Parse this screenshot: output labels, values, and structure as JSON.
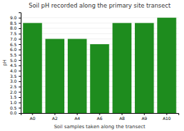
{
  "chart_data": {
    "type": "bar",
    "title": "Soil pH recorded along the primary site transect",
    "xlabel": "Soil samples taken along the transect",
    "ylabel": "pH",
    "categories": [
      "A0",
      "A2",
      "A4",
      "A6",
      "A8",
      "A9",
      "A10"
    ],
    "values": [
      8.5,
      7.0,
      7.0,
      6.5,
      8.5,
      8.5,
      9.0
    ],
    "color": "#1e8c1e",
    "ylim": [
      0,
      9.5
    ],
    "yticks": [
      {
        "value": 0,
        "label": "0.0"
      },
      0.5,
      {
        "value": 1.0,
        "label": "1.0"
      },
      1.5,
      {
        "value": 2.0,
        "label": "2.0"
      },
      2.5,
      {
        "value": 3.0,
        "label": "3.0"
      },
      3.5,
      {
        "value": 4.0,
        "label": "4.0"
      },
      4.5,
      {
        "value": 5.0,
        "label": "5.0"
      },
      5.5,
      {
        "value": 6.0,
        "label": "6.0"
      },
      6.5,
      {
        "value": 7.0,
        "label": "7.0"
      },
      7.5,
      {
        "value": 8.0,
        "label": "8.0"
      },
      8.5,
      {
        "value": 9.0,
        "label": "9.0"
      }
    ],
    "grid": true
  }
}
